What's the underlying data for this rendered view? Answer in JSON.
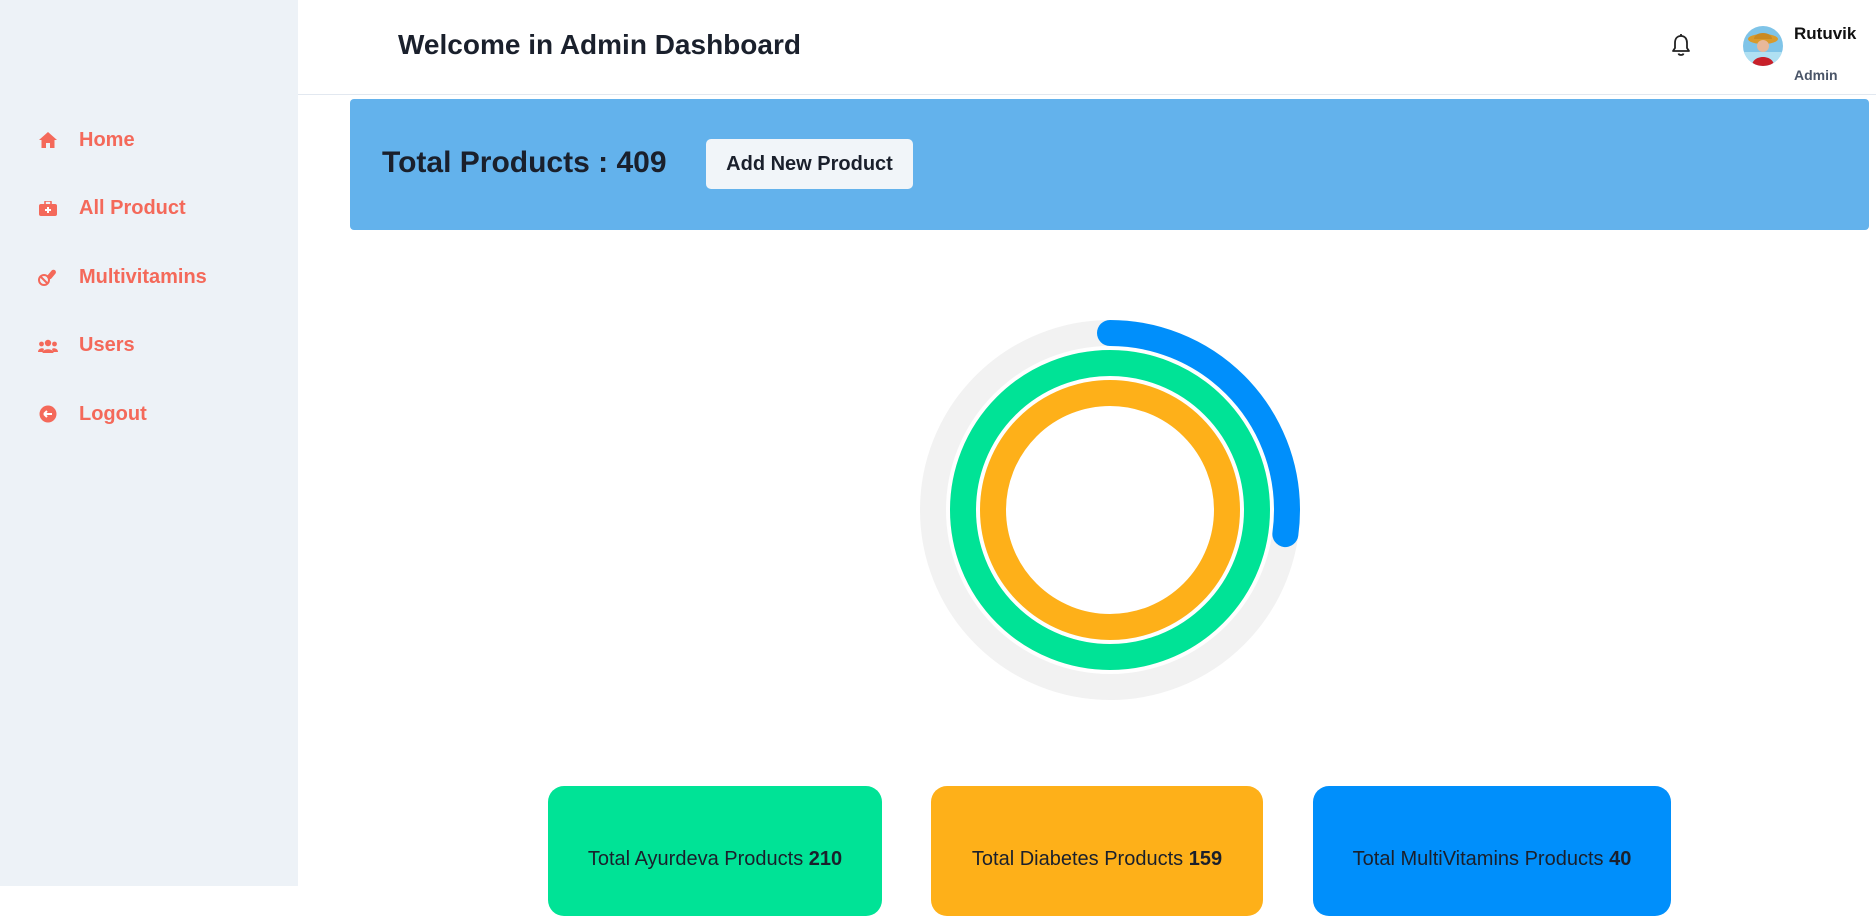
{
  "sidebar": {
    "items": [
      {
        "label": "Home",
        "icon": "home-icon"
      },
      {
        "label": "All Product",
        "icon": "medkit-icon"
      },
      {
        "label": "Multivitamins",
        "icon": "pills-icon"
      },
      {
        "label": "Users",
        "icon": "users-icon"
      },
      {
        "label": "Logout",
        "icon": "logout-icon"
      }
    ],
    "accent_color": "#f4695a"
  },
  "header": {
    "title": "Welcome in Admin Dashboard",
    "notification_icon": "bell-icon",
    "user": {
      "name": "Rutuvik",
      "role": "Admin"
    }
  },
  "banner": {
    "total_label": "Total Products : 409",
    "add_button_label": "Add New Product",
    "color": "#63b2ec"
  },
  "chart_data": {
    "type": "radialBar",
    "total": 409,
    "series": [
      {
        "value": 210,
        "color": "#00e396"
      },
      {
        "value": 159,
        "color": "#feb019"
      },
      {
        "value": 40,
        "color": "#008ffb"
      }
    ]
  },
  "cards": [
    {
      "label": "Total Ayurdeva Products",
      "value": "210",
      "color": "#00e396"
    },
    {
      "label": "Total Diabetes Products",
      "value": "159",
      "color": "#feb019"
    },
    {
      "label": "Total MultiVitamins Products",
      "value": "40",
      "color": "#008ffb"
    }
  ]
}
